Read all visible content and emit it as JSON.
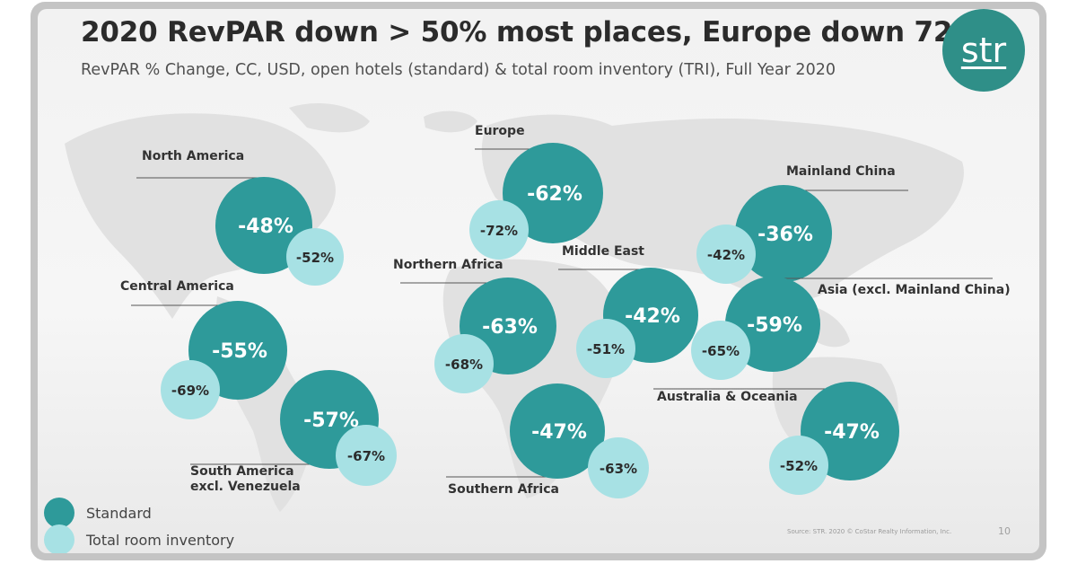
{
  "title": "2020 RevPAR down > 50% most places, Europe down 72%",
  "subtitle": "RevPAR % Change, CC, USD, open hotels (standard) & total room inventory (TRI), Full Year 2020",
  "logo_text": "str",
  "source": "Source: STR. 2020 © CoStar Realty Information, Inc.",
  "page_number": "10",
  "colors": {
    "standard": "#2e9a9a",
    "total_room_inventory": "#a7e1e4",
    "text_on_standard": "#ffffff",
    "text_on_tri": "#2b2b2b"
  },
  "chart_data": {
    "type": "bubble-map",
    "title": "2020 RevPAR down > 50% most places, Europe down 72%",
    "subtitle": "RevPAR % Change, CC, USD, open hotels (standard) & total room inventory (TRI), Full Year 2020",
    "legend": [
      {
        "key": "standard",
        "label": "Standard"
      },
      {
        "key": "tri",
        "label": "Total room inventory"
      }
    ],
    "legend_placement": "bottom-left",
    "regions": [
      {
        "name": "North America",
        "label_lines": [
          "North America"
        ],
        "standard": "-48%",
        "tri": "-52%"
      },
      {
        "name": "Central America",
        "label_lines": [
          "Central America"
        ],
        "standard": "-55%",
        "tri": "-69%"
      },
      {
        "name": "South America excl. Venezuela",
        "label_lines": [
          "South America",
          "excl. Venezuela"
        ],
        "standard": "-57%",
        "tri": "-67%"
      },
      {
        "name": "Europe",
        "label_lines": [
          "Europe"
        ],
        "standard": "-62%",
        "tri": "-72%"
      },
      {
        "name": "Northern Africa",
        "label_lines": [
          "Northern Africa"
        ],
        "standard": "-63%",
        "tri": "-68%"
      },
      {
        "name": "Middle East",
        "label_lines": [
          "Middle East"
        ],
        "standard": "-42%",
        "tri": "-51%"
      },
      {
        "name": "Southern Africa",
        "label_lines": [
          "Southern Africa"
        ],
        "standard": "-47%",
        "tri": "-63%"
      },
      {
        "name": "Mainland China",
        "label_lines": [
          "Mainland China"
        ],
        "standard": "-36%",
        "tri": "-42%"
      },
      {
        "name": "Asia (excl. Mainland China)",
        "label_lines": [
          "Asia (excl. Mainland China)"
        ],
        "standard": "-59%",
        "tri": "-65%"
      },
      {
        "name": "Australia & Oceania",
        "label_lines": [
          "Australia & Oceania"
        ],
        "standard": "-47%",
        "tri": "-52%"
      }
    ]
  }
}
